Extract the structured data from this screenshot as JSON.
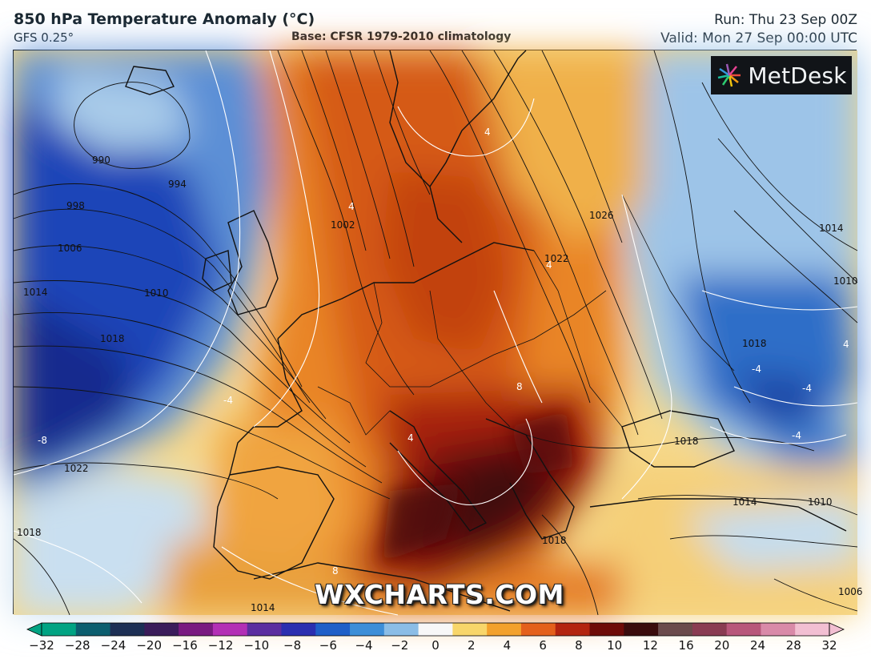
{
  "header": {
    "title": "850 hPa Temperature Anomaly (°C)",
    "model": "GFS 0.25°",
    "base": "Base: CFSR 1979-2010 climatology",
    "run": "Run: Thu 23 Sep 00Z",
    "valid": "Valid: Mon 27 Sep 00:00 UTC"
  },
  "map": {
    "logo_text": "MetDesk",
    "watermark": "WXCHARTS.COM",
    "isobar_labels": [
      "990",
      "994",
      "998",
      "1002",
      "1006",
      "1010",
      "1014",
      "1018",
      "1022",
      "1022",
      "1026",
      "1018",
      "1018",
      "1014",
      "1010",
      "1014",
      "1010",
      "1018",
      "1018",
      "1014",
      "1006"
    ],
    "anomaly_labels": [
      "-8",
      "-4",
      "4",
      "4",
      "4",
      "8",
      "8",
      "4",
      "-4",
      "-4",
      "-4",
      "4"
    ]
  },
  "colorbar": {
    "ticks": [
      "−32",
      "−28",
      "−24",
      "−20",
      "−16",
      "−12",
      "−10",
      "−8",
      "−6",
      "−4",
      "−2",
      "0",
      "2",
      "4",
      "6",
      "8",
      "10",
      "12",
      "16",
      "20",
      "24",
      "28",
      "32"
    ],
    "colors": [
      "#00a383",
      "#0b5e6f",
      "#1c2f55",
      "#3b1c5a",
      "#7a1a80",
      "#b32fb5",
      "#5c2ea0",
      "#2b2fb0",
      "#1f5fc8",
      "#3d8ed8",
      "#8bbde6",
      "#f7f7f7",
      "#f8d66a",
      "#f3a12c",
      "#e4601b",
      "#b3240f",
      "#6e0b08",
      "#3a0c0c",
      "#6b4b4b",
      "#8a3c52",
      "#b8577a",
      "#d98aa8",
      "#f2bfd2"
    ]
  }
}
